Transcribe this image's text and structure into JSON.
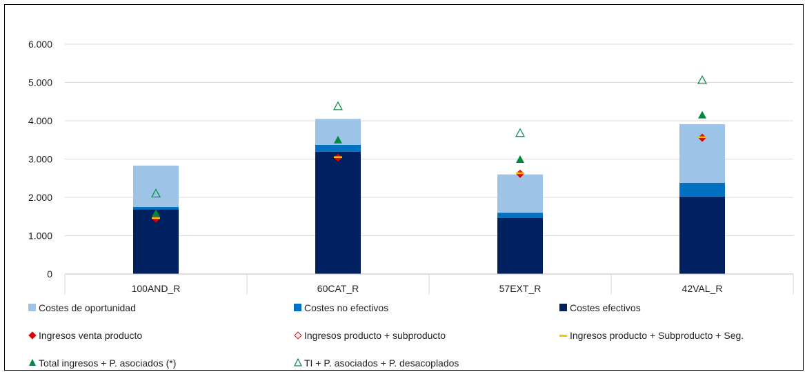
{
  "chart_data": {
    "type": "bar",
    "stacked": true,
    "categories": [
      "100AND_R",
      "60CAT_R",
      "57EXT_R",
      "42VAL_R"
    ],
    "ylim": [
      0,
      6000
    ],
    "yticks": [
      "0",
      "1.000",
      "2.000",
      "3.000",
      "4.000",
      "5.000",
      "6.000"
    ],
    "ytick_values": [
      0,
      1000,
      2000,
      3000,
      4000,
      5000,
      6000
    ],
    "grid": true,
    "legend_position": "bottom",
    "bar_series": [
      {
        "name": "Costes efectivos",
        "color": "#002060",
        "values": [
          1690,
          3190,
          1460,
          2020
        ]
      },
      {
        "name": "Costes no efectivos",
        "color": "#0070C0",
        "values": [
          60,
          180,
          140,
          360
        ]
      },
      {
        "name": "Costes de oportunidad",
        "color": "#9DC3E6",
        "values": [
          1080,
          680,
          1000,
          1530
        ]
      }
    ],
    "marker_series": [
      {
        "name": "Ingresos venta producto",
        "marker": "diamond-filled",
        "color": "#E00000",
        "values": [
          1430,
          3020,
          2600,
          3540
        ]
      },
      {
        "name": "Ingresos producto + subproducto",
        "marker": "diamond-open",
        "color": "#E00000",
        "values": [
          1450,
          3040,
          2620,
          3560
        ]
      },
      {
        "name": "Ingresos producto + Subproducto + Seg.",
        "marker": "dash",
        "color": "#FFC000",
        "values": [
          1460,
          3050,
          2630,
          3570
        ]
      },
      {
        "name": "Total ingresos + P. asociados (*)",
        "marker": "triangle-filled",
        "color": "#008A3E",
        "values": [
          1580,
          3500,
          2990,
          4150
        ]
      },
      {
        "name": "TI + P. asociados + P. desacoplados",
        "marker": "triangle-open",
        "color": "#008A3E",
        "values": [
          2100,
          4380,
          3680,
          5060
        ]
      }
    ]
  },
  "legend": {
    "items": [
      {
        "label": "Costes de oportunidad",
        "swatch": "box",
        "color": "#9DC3E6"
      },
      {
        "label": "Costes no efectivos",
        "swatch": "box",
        "color": "#0070C0"
      },
      {
        "label": "Costes efectivos",
        "swatch": "box",
        "color": "#002060"
      },
      {
        "label": "Ingresos venta producto",
        "swatch": "diamond-filled",
        "color": "#E00000"
      },
      {
        "label": "Ingresos producto + subproducto",
        "swatch": "diamond-open",
        "color": "#E00000"
      },
      {
        "label": "Ingresos producto + Subproducto + Seg.",
        "swatch": "dash",
        "color": "#FFC000"
      },
      {
        "label": "Total ingresos + P. asociados (*)",
        "swatch": "triangle-filled",
        "color": "#008A3E"
      },
      {
        "label": "TI + P. asociados + P. desacoplados",
        "swatch": "triangle-open",
        "color": "#008A3E"
      }
    ]
  }
}
